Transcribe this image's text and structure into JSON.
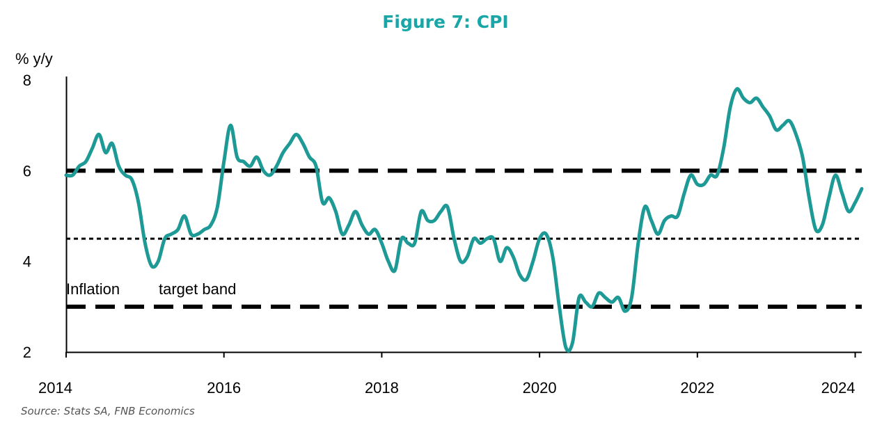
{
  "chart_data": {
    "type": "line",
    "title": "Figure 7: CPI",
    "ylabel": "% y/y",
    "source": "Source: Stats SA, FNB Economics",
    "annotations": [
      "Inflation",
      "target band"
    ],
    "xlim": [
      "2014-01",
      "2024-02"
    ],
    "ylim": [
      2,
      8
    ],
    "x_ticks": [
      "2014",
      "2016",
      "2018",
      "2020",
      "2022",
      "2024"
    ],
    "y_ticks": [
      "2",
      "4",
      "6",
      "8"
    ],
    "grid": false,
    "colors": {
      "series": "#1e9a96",
      "title": "#1aa6a6",
      "reference": "#000000"
    },
    "reference_lines": [
      {
        "label": "Inflation target band upper",
        "value": 6,
        "style": "dash"
      },
      {
        "label": "Inflation target band midpoint",
        "value": 4.5,
        "style": "dot"
      },
      {
        "label": "Inflation target band lower",
        "value": 3,
        "style": "dash"
      }
    ],
    "series": [
      {
        "x": [
          "2014-01",
          "2014-02",
          "2014-03",
          "2014-04",
          "2014-05",
          "2014-06",
          "2014-07",
          "2014-08",
          "2014-09",
          "2014-10",
          "2014-11",
          "2014-12",
          "2015-01",
          "2015-02",
          "2015-03",
          "2015-04",
          "2015-05",
          "2015-06",
          "2015-07",
          "2015-08",
          "2015-09",
          "2015-10",
          "2015-11",
          "2015-12",
          "2016-01",
          "2016-02",
          "2016-03",
          "2016-04",
          "2016-05",
          "2016-06",
          "2016-07",
          "2016-08",
          "2016-09",
          "2016-10",
          "2016-11",
          "2016-12",
          "2017-01",
          "2017-02",
          "2017-03",
          "2017-04",
          "2017-05",
          "2017-06",
          "2017-07",
          "2017-08",
          "2017-09",
          "2017-10",
          "2017-11",
          "2017-12",
          "2018-01",
          "2018-02",
          "2018-03",
          "2018-04",
          "2018-05",
          "2018-06",
          "2018-07",
          "2018-08",
          "2018-09",
          "2018-10",
          "2018-11",
          "2018-12",
          "2019-01",
          "2019-02",
          "2019-03",
          "2019-04",
          "2019-05",
          "2019-06",
          "2019-07",
          "2019-08",
          "2019-09",
          "2019-10",
          "2019-11",
          "2019-12",
          "2020-01",
          "2020-02",
          "2020-03",
          "2020-04",
          "2020-05",
          "2020-06",
          "2020-07",
          "2020-08",
          "2020-09",
          "2020-10",
          "2020-11",
          "2020-12",
          "2021-01",
          "2021-02",
          "2021-03",
          "2021-04",
          "2021-05",
          "2021-06",
          "2021-07",
          "2021-08",
          "2021-09",
          "2021-10",
          "2021-11",
          "2021-12",
          "2022-01",
          "2022-02",
          "2022-03",
          "2022-04",
          "2022-05",
          "2022-06",
          "2022-07",
          "2022-08",
          "2022-09",
          "2022-10",
          "2022-11",
          "2022-12",
          "2023-01",
          "2023-02",
          "2023-03",
          "2023-04",
          "2023-05",
          "2023-06",
          "2023-07",
          "2023-08",
          "2023-09",
          "2023-10",
          "2023-11",
          "2023-12",
          "2024-01",
          "2024-02"
        ],
        "values": [
          5.9,
          5.9,
          6.1,
          6.2,
          6.5,
          6.8,
          6.4,
          6.6,
          6.1,
          5.9,
          5.8,
          5.3,
          4.4,
          3.9,
          4.0,
          4.5,
          4.6,
          4.7,
          5.0,
          4.6,
          4.6,
          4.7,
          4.8,
          5.2,
          6.2,
          7.0,
          6.3,
          6.2,
          6.1,
          6.3,
          6.0,
          5.9,
          6.1,
          6.4,
          6.6,
          6.8,
          6.6,
          6.3,
          6.1,
          5.3,
          5.4,
          5.1,
          4.6,
          4.8,
          5.1,
          4.8,
          4.6,
          4.7,
          4.4,
          4.0,
          3.8,
          4.5,
          4.4,
          4.4,
          5.1,
          4.9,
          4.9,
          5.1,
          5.2,
          4.5,
          4.0,
          4.1,
          4.5,
          4.4,
          4.5,
          4.5,
          4.0,
          4.3,
          4.1,
          3.7,
          3.6,
          4.0,
          4.5,
          4.6,
          4.1,
          3.0,
          2.1,
          2.2,
          3.2,
          3.1,
          3.0,
          3.3,
          3.2,
          3.1,
          3.2,
          2.9,
          3.2,
          4.4,
          5.2,
          4.9,
          4.6,
          4.9,
          5.0,
          5.0,
          5.5,
          5.9,
          5.7,
          5.7,
          5.9,
          5.9,
          6.5,
          7.4,
          7.8,
          7.6,
          7.5,
          7.6,
          7.4,
          7.2,
          6.9,
          7.0,
          7.1,
          6.8,
          6.3,
          5.4,
          4.7,
          4.8,
          5.4,
          5.9,
          5.5,
          5.1,
          5.3,
          5.6
        ],
        "color": "#1e9a96"
      }
    ]
  }
}
